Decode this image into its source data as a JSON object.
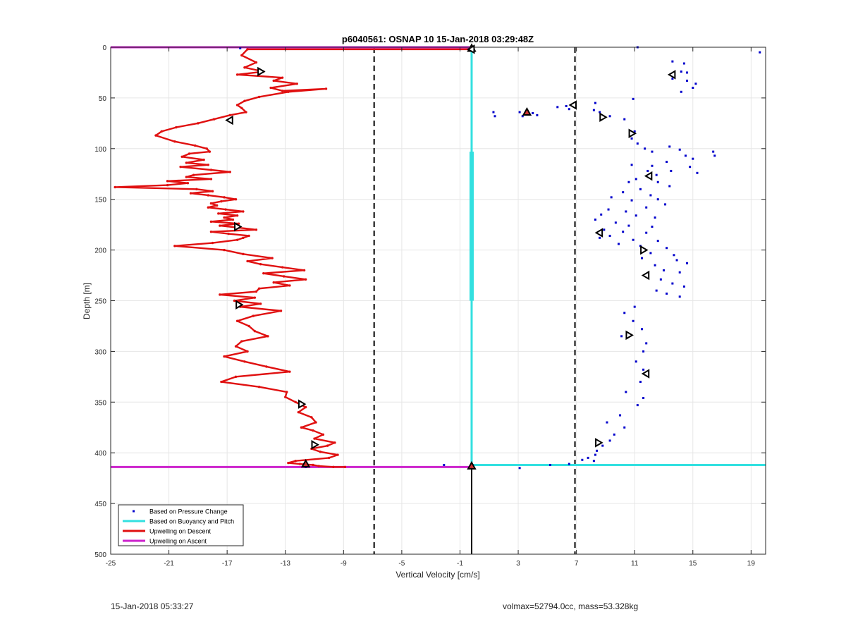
{
  "chart_data": {
    "type": "line",
    "title": "p6040561: OSNAP 10 15-Jan-2018 03:29:48Z",
    "xlabel": "Vertical Velocity [cm/s]",
    "ylabel": "Depth [m]",
    "xlim": [
      -25,
      20
    ],
    "ylim": [
      0,
      500
    ],
    "y_reversed": true,
    "grid": true,
    "xticks": [
      -25,
      -21,
      -17,
      -13,
      -9,
      -5,
      -1,
      3,
      7,
      11,
      15,
      19
    ],
    "yticks": [
      0,
      50,
      100,
      150,
      200,
      250,
      300,
      350,
      400,
      450,
      500
    ],
    "legend_position": "bottom-left",
    "legend": [
      {
        "label": "Based on Pressure Change",
        "color": "#0000cc",
        "style": "point"
      },
      {
        "label": "Based on Buoyancy and Pitch",
        "color": "#33e0e0",
        "style": "line"
      },
      {
        "label": "Upwelling on Descent",
        "color": "#e01010",
        "style": "line"
      },
      {
        "label": "Upwelling on Ascent",
        "color": "#cc22cc",
        "style": "line"
      }
    ],
    "series": [
      {
        "name": "Upwelling on Descent",
        "color": "#e01010",
        "x": [
          -0.2,
          -15.6,
          -16.0,
          -15.0,
          -15.8,
          -14.5,
          -16.3,
          -13.2,
          -13.8,
          -12.2,
          -14.0,
          -13.2,
          -10.2,
          -12.8,
          -14.8,
          -15.8,
          -16.3,
          -16.0,
          -15.7,
          -16.8,
          -17.9,
          -19.0,
          -20.5,
          -21.5,
          -21.9,
          -20.6,
          -19.2,
          -18.4,
          -18.2,
          -19.6,
          -20.1,
          -18.6,
          -19.8,
          -18.3,
          -20.2,
          -18.1,
          -16.8,
          -19.3,
          -19.8,
          -18.1,
          -21.1,
          -19.7,
          -21.1,
          -24.7,
          -19.1,
          -18.0,
          -19.5,
          -18.3,
          -17.2,
          -16.4,
          -17.4,
          -18.1,
          -17.7,
          -18.3,
          -17.1,
          -15.9,
          -17.6,
          -16.3,
          -17.2,
          -16.6,
          -18.1,
          -16.2,
          -17.5,
          -16.2,
          -15.0,
          -18.1,
          -16.9,
          -15.5,
          -15.9,
          -16.3,
          -18.0,
          -20.6,
          -17.2,
          -15.9,
          -13.9,
          -15.6,
          -14.7,
          -13.2,
          -11.7,
          -14.5,
          -13.1,
          -11.6,
          -13.8,
          -12.7,
          -14.8,
          -15.0,
          -17.5,
          -15.1,
          -16.5,
          -14.7,
          -16.1,
          -13.3,
          -15.2,
          -16.3,
          -15.5,
          -15.1,
          -14.2,
          -16.0,
          -16.4,
          -15.6,
          -17.2,
          -15.8,
          -14.3,
          -12.7,
          -16.4,
          -17.4,
          -14.8,
          -12.9,
          -13.0,
          -12.3,
          -11.6,
          -12.1,
          -11.2,
          -10.9,
          -11.9,
          -11.1,
          -10.4,
          -11.0,
          -9.6,
          -10.1,
          -11.2,
          -10.6,
          -9.4,
          -10.0,
          -12.3,
          -12.8,
          -12.0,
          -11.1,
          -10.7,
          -9.7,
          -8.9
        ],
        "y": [
          2,
          2,
          8,
          15,
          20,
          24,
          27,
          30,
          33,
          36,
          40,
          43,
          41,
          44,
          49,
          53,
          57,
          60,
          64,
          67,
          71,
          75,
          79,
          83,
          87,
          93,
          97,
          100,
          103,
          105,
          108,
          111,
          114,
          116,
          118,
          121,
          123,
          126,
          128,
          130,
          132,
          134,
          136,
          138,
          140,
          142,
          144,
          146,
          148,
          150,
          152,
          154,
          156,
          158,
          160,
          162,
          164,
          166,
          168,
          170,
          172,
          174,
          176,
          178,
          180,
          182,
          184,
          186,
          188,
          190,
          193,
          196,
          200,
          204,
          208,
          211,
          214,
          217,
          220,
          223,
          226,
          229,
          232,
          235,
          238,
          241,
          244,
          247,
          250,
          253,
          256,
          260,
          265,
          270,
          275,
          280,
          285,
          290,
          295,
          300,
          305,
          310,
          315,
          320,
          325,
          330,
          335,
          340,
          345,
          350,
          355,
          360,
          365,
          370,
          375,
          378,
          382,
          386,
          390,
          393,
          396,
          399,
          402,
          405,
          408,
          410,
          411,
          412,
          413,
          414,
          414
        ]
      },
      {
        "name": "Upwelling on Ascent",
        "color": "#cc22cc",
        "segments": [
          {
            "x": [
              -25,
              -0.2
            ],
            "y": [
              0,
              0
            ]
          },
          {
            "x": [
              -25,
              -0.2
            ],
            "y": [
              414,
              414
            ]
          }
        ]
      },
      {
        "name": "Based on Buoyancy and Pitch",
        "color": "#33e0e0",
        "segments": [
          {
            "x": [
              -0.2,
              -0.2
            ],
            "y": [
              0,
              412
            ]
          },
          {
            "x": [
              -0.2,
              20
            ],
            "y": [
              412,
              412
            ]
          }
        ]
      },
      {
        "name": "Based on Pressure Change",
        "color": "#0000cc",
        "points": [
          [
            11.2,
            0
          ],
          [
            19.6,
            5
          ],
          [
            -16.1,
            1
          ],
          [
            13.6,
            14
          ],
          [
            14.4,
            16
          ],
          [
            14.2,
            24
          ],
          [
            14.6,
            25
          ],
          [
            13.6,
            31
          ],
          [
            14.6,
            33
          ],
          [
            15.2,
            36
          ],
          [
            15.0,
            40
          ],
          [
            14.2,
            44
          ],
          [
            10.9,
            51
          ],
          [
            3.1,
            64
          ],
          [
            3.5,
            66
          ],
          [
            4.3,
            67
          ],
          [
            3.3,
            68
          ],
          [
            4.0,
            65
          ],
          [
            1.3,
            64
          ],
          [
            1.4,
            68
          ],
          [
            5.7,
            59
          ],
          [
            6.3,
            58
          ],
          [
            6.5,
            61
          ],
          [
            8.3,
            55
          ],
          [
            8.2,
            62
          ],
          [
            8.6,
            64
          ],
          [
            9.3,
            68
          ],
          [
            10.3,
            71
          ],
          [
            11.0,
            83
          ],
          [
            10.8,
            90
          ],
          [
            11.2,
            95
          ],
          [
            11.7,
            100
          ],
          [
            12.2,
            103
          ],
          [
            13.4,
            98
          ],
          [
            14.1,
            101
          ],
          [
            14.5,
            107
          ],
          [
            15.0,
            110
          ],
          [
            16.4,
            103
          ],
          [
            16.5,
            107
          ],
          [
            13.2,
            113
          ],
          [
            12.2,
            117
          ],
          [
            10.8,
            116
          ],
          [
            11.9,
            122
          ],
          [
            13.5,
            122
          ],
          [
            14.8,
            118
          ],
          [
            15.3,
            124
          ],
          [
            12.5,
            126
          ],
          [
            11.1,
            130
          ],
          [
            10.6,
            133
          ],
          [
            12.6,
            133
          ],
          [
            13.4,
            137
          ],
          [
            11.4,
            140
          ],
          [
            10.2,
            143
          ],
          [
            12.1,
            146
          ],
          [
            9.4,
            148
          ],
          [
            10.8,
            151
          ],
          [
            12.6,
            150
          ],
          [
            13.1,
            155
          ],
          [
            11.8,
            158
          ],
          [
            9.2,
            160
          ],
          [
            10.4,
            162
          ],
          [
            8.7,
            165
          ],
          [
            11.1,
            166
          ],
          [
            12.4,
            168
          ],
          [
            8.3,
            170
          ],
          [
            9.7,
            173
          ],
          [
            10.6,
            176
          ],
          [
            12.2,
            177
          ],
          [
            8.9,
            180
          ],
          [
            10.2,
            182
          ],
          [
            11.8,
            183
          ],
          [
            9.3,
            186
          ],
          [
            8.6,
            188
          ],
          [
            10.9,
            190
          ],
          [
            12.6,
            191
          ],
          [
            9.9,
            194
          ],
          [
            11.4,
            196
          ],
          [
            13.2,
            198
          ],
          [
            12.1,
            203
          ],
          [
            13.7,
            205
          ],
          [
            11.5,
            208
          ],
          [
            13.9,
            210
          ],
          [
            14.6,
            213
          ],
          [
            12.4,
            215
          ],
          [
            13.0,
            220
          ],
          [
            14.1,
            222
          ],
          [
            11.9,
            226
          ],
          [
            12.8,
            229
          ],
          [
            13.6,
            233
          ],
          [
            14.4,
            236
          ],
          [
            12.5,
            240
          ],
          [
            13.2,
            243
          ],
          [
            14.1,
            246
          ],
          [
            11.0,
            256
          ],
          [
            10.3,
            262
          ],
          [
            10.9,
            270
          ],
          [
            11.5,
            278
          ],
          [
            10.1,
            285
          ],
          [
            11.8,
            292
          ],
          [
            11.6,
            300
          ],
          [
            11.1,
            310
          ],
          [
            11.6,
            318
          ],
          [
            11.4,
            330
          ],
          [
            10.4,
            340
          ],
          [
            11.6,
            346
          ],
          [
            11.2,
            353
          ],
          [
            10.0,
            363
          ],
          [
            9.1,
            370
          ],
          [
            10.3,
            375
          ],
          [
            9.6,
            382
          ],
          [
            9.3,
            388
          ],
          [
            8.8,
            393
          ],
          [
            8.4,
            398
          ],
          [
            8.3,
            402
          ],
          [
            7.8,
            405
          ],
          [
            7.4,
            407
          ],
          [
            8.2,
            408
          ],
          [
            6.5,
            411
          ],
          [
            5.2,
            412
          ],
          [
            3.1,
            415
          ],
          [
            -2.1,
            412
          ],
          [
            -11.6,
            414
          ]
        ]
      }
    ],
    "reference_lines": [
      {
        "x": -6.9,
        "color": "#000000",
        "style": "dashed"
      },
      {
        "x": 6.9,
        "color": "#000000",
        "style": "dashed"
      },
      {
        "x": -0.2,
        "y_range": [
          412,
          500
        ],
        "color": "#000000",
        "style": "solid"
      }
    ],
    "markers": {
      "filled_triangles": [
        [
          -0.2,
          1
        ],
        [
          3.6,
          64
        ],
        [
          -11.6,
          411
        ],
        [
          -0.2,
          413
        ]
      ],
      "open_triangles_left": [
        [
          -0.2,
          2
        ],
        [
          -16.8,
          72
        ],
        [
          13.6,
          27
        ],
        [
          6.8,
          57
        ],
        [
          12.0,
          127
        ],
        [
          11.8,
          225
        ],
        [
          11.8,
          322
        ],
        [
          8.6,
          183
        ]
      ],
      "open_triangles_right": [
        [
          -14.7,
          24
        ],
        [
          8.8,
          69
        ],
        [
          -16.3,
          177
        ],
        [
          10.8,
          85
        ],
        [
          11.6,
          200
        ],
        [
          -16.2,
          254
        ],
        [
          10.6,
          284
        ],
        [
          8.5,
          390
        ],
        [
          -11.9,
          352
        ],
        [
          -11.0,
          392
        ]
      ]
    }
  },
  "footer": {
    "timestamp": "15-Jan-2018 05:33:27",
    "params": "volmax=52794.0cc, mass=53.328kg"
  }
}
